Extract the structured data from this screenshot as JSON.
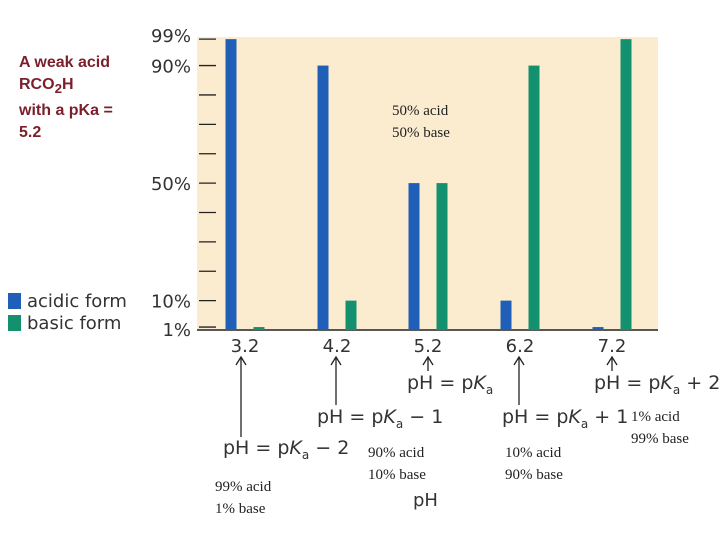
{
  "intro": {
    "line1": "A weak acid",
    "line2_prefix": "RCO",
    "line2_sub": "2",
    "line2_suffix": "H",
    "line3": "with a pKa =",
    "line4": "5.2"
  },
  "legend": [
    {
      "label": "acidic form",
      "color": "#1f5fb8"
    },
    {
      "label": "basic form",
      "color": "#13906e"
    }
  ],
  "chart_data": {
    "type": "bar",
    "categories": [
      "3.2",
      "4.2",
      "5.2",
      "6.2",
      "7.2"
    ],
    "series": [
      {
        "name": "acidic form",
        "color": "#1f5fb8",
        "values": [
          99,
          90,
          50,
          10,
          1
        ]
      },
      {
        "name": "basic form",
        "color": "#13906e",
        "values": [
          1,
          10,
          50,
          90,
          99
        ]
      }
    ],
    "ylim": [
      0,
      100
    ],
    "y_tick_labels": [
      {
        "value": 99,
        "label": "99%"
      },
      {
        "value": 90,
        "label": "90%"
      },
      {
        "value": 50,
        "label": "50%"
      },
      {
        "value": 10,
        "label": "10%"
      },
      {
        "value": 1,
        "label": "1%"
      }
    ],
    "xlabel": "pH",
    "background": "#fbecd0",
    "grid": false,
    "legend_position": "left"
  },
  "notes": {
    "mid": [
      "50% acid",
      "50% base"
    ],
    "c1": [
      "99% acid",
      "1% base"
    ],
    "c2": [
      "90% acid",
      "10% base"
    ],
    "c4": [
      "10% acid",
      "90% base"
    ],
    "c5": [
      "1% acid",
      "99% base"
    ]
  },
  "formulas": {
    "pH": "pH",
    "eq": " = p",
    "K": "K",
    "a": "a",
    "c1_suffix": " − 2",
    "c2_suffix": " − 1",
    "c3_suffix": "",
    "c4_suffix": " + 1",
    "c5_suffix": " + 2"
  }
}
